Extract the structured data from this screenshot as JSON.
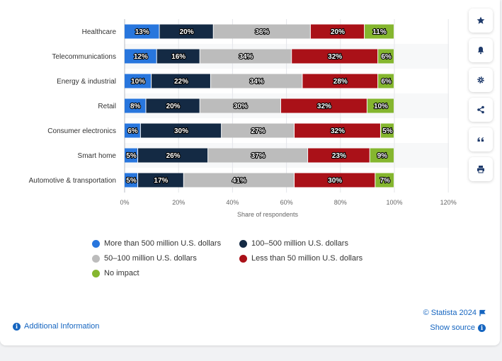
{
  "chart_data": {
    "type": "bar",
    "orientation": "horizontal",
    "stacked": true,
    "categories": [
      "Healthcare",
      "Telecommunications",
      "Energy & industrial",
      "Retail",
      "Consumer electronics",
      "Smart home",
      "Automotive & transportation"
    ],
    "series": [
      {
        "name": "More than 500 million U.S. dollars",
        "color": "#2876dd",
        "values": [
          13,
          12,
          10,
          8,
          6,
          5,
          5
        ]
      },
      {
        "name": "100-500 million U.S. dollars",
        "color": "#142a44",
        "values": [
          20,
          16,
          22,
          20,
          30,
          26,
          17
        ]
      },
      {
        "name": "50-100 million U.S. dollars",
        "color": "#bcbcbc",
        "values": [
          36,
          34,
          34,
          30,
          27,
          37,
          41
        ]
      },
      {
        "name": "Less than 50 million U.S. dollars",
        "color": "#aa1118",
        "values": [
          20,
          32,
          28,
          32,
          32,
          23,
          30
        ]
      },
      {
        "name": "No impact",
        "color": "#85b62f",
        "values": [
          11,
          6,
          6,
          10,
          5,
          9,
          7
        ]
      }
    ],
    "value_suffix": "%",
    "xlabel": "Share of respondents",
    "xlim": [
      0,
      120
    ],
    "xticks": [
      0,
      20,
      40,
      60,
      80,
      100,
      120
    ],
    "xtick_labels": [
      "0%",
      "20%",
      "40%",
      "60%",
      "80%",
      "100%",
      "120%"
    ],
    "grid": true,
    "legend_position": "bottom"
  },
  "legend": [
    {
      "label": "More than 500 million U.S. dollars",
      "color": "#2876dd"
    },
    {
      "label": "100–500 million U.S. dollars",
      "color": "#142a44"
    },
    {
      "label": "50–100 million U.S. dollars",
      "color": "#bcbcbc"
    },
    {
      "label": "Less than 50 million U.S. dollars",
      "color": "#aa1118"
    },
    {
      "label": "No impact",
      "color": "#85b62f"
    }
  ],
  "toolbar": [
    {
      "name": "star-icon"
    },
    {
      "name": "bell-icon"
    },
    {
      "name": "gear-icon"
    },
    {
      "name": "share-icon"
    },
    {
      "name": "quote-icon"
    },
    {
      "name": "print-icon"
    }
  ],
  "footer": {
    "copyright": "© Statista 2024",
    "show_source": "Show source",
    "additional_info": "Additional Information"
  },
  "colors": {
    "link": "#1565c0",
    "icon": "#1e3a6b"
  }
}
